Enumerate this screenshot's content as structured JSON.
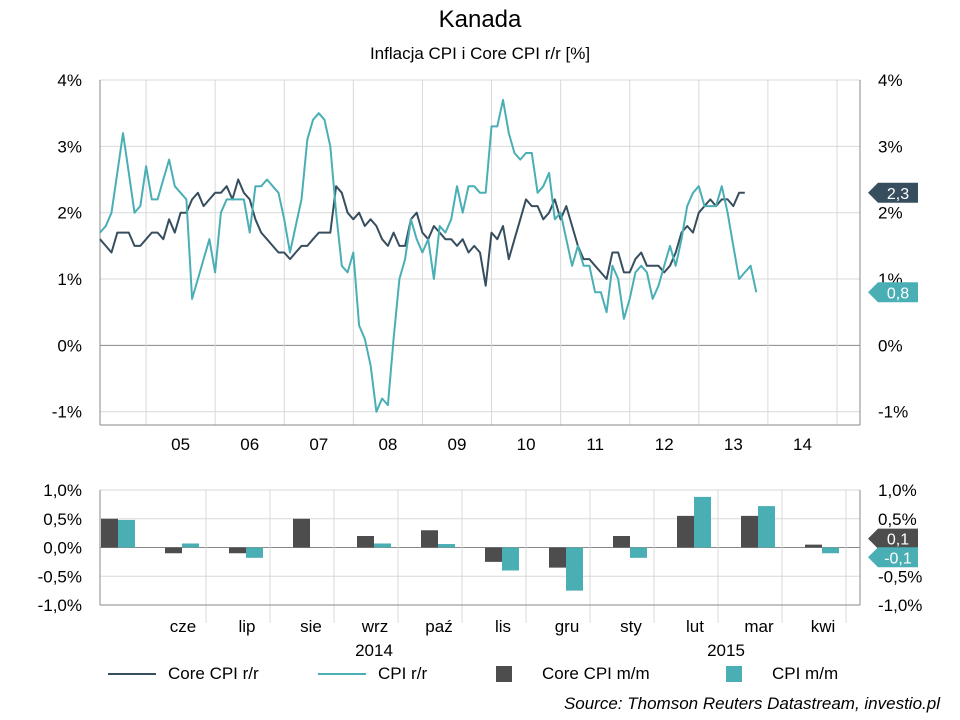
{
  "title": "Kanada",
  "subtitle": "Inflacja CPI i Core CPI r/r [%]",
  "source": "Source: Thomson Reuters Datastream, investio.pl",
  "legend": {
    "core_yoy": "Core CPI r/r",
    "cpi_yoy": "CPI r/r",
    "core_mom": "Core CPI m/m",
    "cpi_mom": "CPI m/m"
  },
  "colors": {
    "core": "#374e5e",
    "cpi": "#4aafb5",
    "core_bar": "#4d4d4d",
    "cpi_bar": "#4aafb5"
  },
  "chart_data": [
    {
      "type": "line",
      "title": "Inflacja CPI i Core CPI r/r [%]",
      "x_tick_labels": [
        "05",
        "06",
        "07",
        "08",
        "09",
        "10",
        "11",
        "12",
        "13",
        "14"
      ],
      "y_tick_labels": [
        "4%",
        "3%",
        "2%",
        "1%",
        "0%",
        "-1%"
      ],
      "ylim": [
        -1.2,
        4.0
      ],
      "x_range": [
        2004.333,
        2015.333
      ],
      "grid": true,
      "series": [
        {
          "name": "Core CPI r/r",
          "color": "#374e5e",
          "x_start": 2004.333,
          "x_step": 0.08333,
          "values": [
            1.6,
            1.5,
            1.4,
            1.7,
            1.7,
            1.7,
            1.5,
            1.5,
            1.6,
            1.7,
            1.7,
            1.6,
            1.9,
            1.7,
            2.0,
            2.0,
            2.2,
            2.3,
            2.1,
            2.2,
            2.3,
            2.3,
            2.4,
            2.2,
            2.5,
            2.3,
            2.2,
            1.9,
            1.7,
            1.6,
            1.5,
            1.4,
            1.4,
            1.3,
            1.4,
            1.5,
            1.5,
            1.6,
            1.7,
            1.7,
            1.7,
            2.4,
            2.3,
            2.0,
            1.9,
            2.0,
            1.8,
            1.9,
            1.8,
            1.6,
            1.5,
            1.7,
            1.5,
            1.5,
            1.9,
            2.0,
            1.7,
            1.6,
            1.8,
            1.7,
            1.6,
            1.6,
            1.5,
            1.6,
            1.4,
            1.5,
            1.4,
            0.9,
            1.7,
            1.6,
            1.8,
            1.3,
            1.6,
            1.9,
            2.2,
            2.1,
            2.1,
            1.9,
            2.0,
            2.2,
            1.9,
            2.1,
            1.8,
            1.5,
            1.3,
            1.3,
            1.2,
            1.1,
            1.0,
            1.4,
            1.4,
            1.1,
            1.1,
            1.3,
            1.4,
            1.2,
            1.2,
            1.2,
            1.1,
            1.2,
            1.4,
            1.7,
            1.8,
            1.7,
            2.0,
            2.1,
            2.2,
            2.1,
            2.2,
            2.2,
            2.1,
            2.3,
            2.3
          ]
        },
        {
          "name": "CPI r/r",
          "color": "#4aafb5",
          "x_start": 2004.333,
          "x_step": 0.08333,
          "values": [
            1.7,
            1.8,
            2.0,
            2.6,
            3.2,
            2.6,
            2.0,
            2.1,
            2.7,
            2.2,
            2.2,
            2.5,
            2.8,
            2.4,
            2.3,
            2.2,
            0.7,
            1.0,
            1.3,
            1.6,
            1.1,
            2.0,
            2.2,
            2.2,
            2.2,
            2.2,
            1.7,
            2.4,
            2.4,
            2.5,
            2.4,
            2.3,
            1.9,
            1.4,
            1.8,
            2.2,
            3.1,
            3.4,
            3.5,
            3.4,
            3.0,
            2.0,
            1.2,
            1.1,
            1.4,
            0.3,
            0.1,
            -0.3,
            -1.0,
            -0.8,
            -0.9,
            0.1,
            1.0,
            1.3,
            1.9,
            1.6,
            1.4,
            1.6,
            1.0,
            1.8,
            1.7,
            1.9,
            2.4,
            2.0,
            2.4,
            2.4,
            2.3,
            2.3,
            3.3,
            3.3,
            3.7,
            3.2,
            2.9,
            2.8,
            2.9,
            2.9,
            2.3,
            2.4,
            2.6,
            1.9,
            2.0,
            1.6,
            1.2,
            1.5,
            1.2,
            1.2,
            0.8,
            0.8,
            0.5,
            1.2,
            1.0,
            0.4,
            0.7,
            1.1,
            1.2,
            1.1,
            0.7,
            0.9,
            1.2,
            1.5,
            1.2,
            1.6,
            2.1,
            2.3,
            2.4,
            2.1,
            2.1,
            2.1,
            2.4,
            2.0,
            1.5,
            1.0,
            1.1,
            1.2,
            0.8
          ]
        }
      ],
      "end_labels": [
        {
          "series": "Core CPI r/r",
          "text": "2,3",
          "value": 2.3
        },
        {
          "series": "CPI r/r",
          "text": "0,8",
          "value": 0.8
        }
      ]
    },
    {
      "type": "bar",
      "title": "",
      "categories": [
        "",
        "cze",
        "lip",
        "sie",
        "wrz",
        "paź",
        "lis",
        "gru",
        "sty",
        "lut",
        "mar",
        "kwi"
      ],
      "year_labels": [
        {
          "text": "2014",
          "between": [
            3,
            5
          ]
        },
        {
          "text": "2015",
          "between": [
            9,
            10
          ]
        }
      ],
      "y_tick_labels": [
        "1,0%",
        "0,5%",
        "0,0%",
        "-0,5%",
        "-1,0%"
      ],
      "ylim": [
        -1.0,
        1.0
      ],
      "grid": true,
      "series": [
        {
          "name": "Core CPI m/m",
          "color": "#4d4d4d",
          "values": [
            0.5,
            -0.1,
            -0.1,
            0.5,
            0.2,
            0.3,
            -0.25,
            -0.35,
            0.2,
            0.55,
            0.55,
            0.05
          ]
        },
        {
          "name": "CPI m/m",
          "color": "#4aafb5",
          "values": [
            0.48,
            0.07,
            -0.18,
            0.0,
            0.07,
            0.06,
            -0.4,
            -0.75,
            -0.18,
            0.88,
            0.72,
            -0.1
          ]
        }
      ],
      "end_labels": [
        {
          "series": "Core CPI m/m",
          "text": "0,1",
          "value": 0.05
        },
        {
          "series": "CPI m/m",
          "text": "-0,1",
          "value": -0.1
        }
      ]
    }
  ]
}
